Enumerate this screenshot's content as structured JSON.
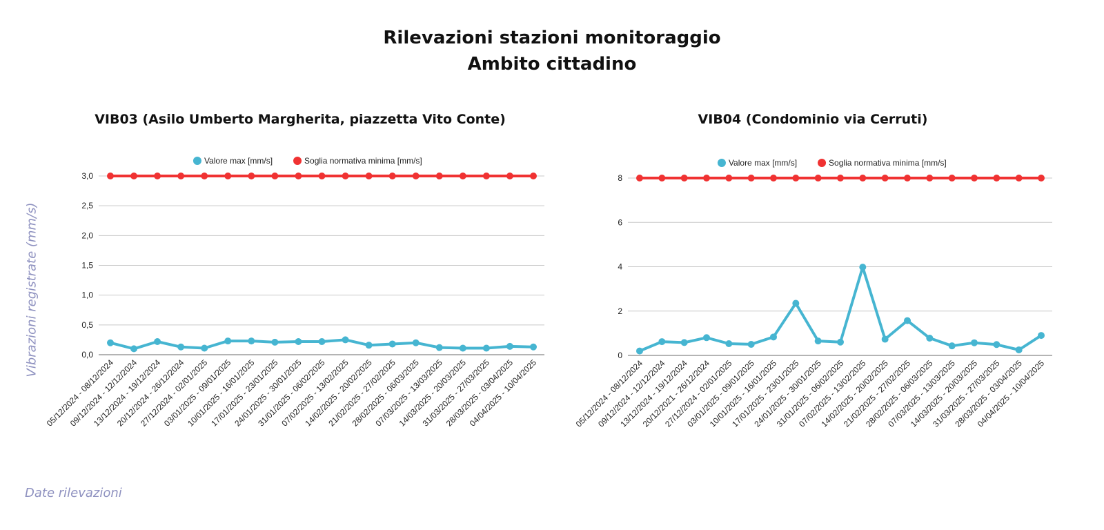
{
  "page": {
    "title_line1": "Rilevazioni stazioni monitoraggio",
    "title_line2": "Ambito cittadino",
    "y_axis_label": "Vibrazioni registrate (mm/s)",
    "x_axis_label": "Date rilevazioni"
  },
  "colors": {
    "valore_max": "#46b5d1",
    "soglia": "#f03232",
    "grid": "#c8c8c8",
    "axis": "#888888"
  },
  "chart_data": [
    {
      "type": "line",
      "title": "VIB03 (Asilo Umberto Margherita, piazzetta Vito Conte)",
      "xlabel": "",
      "ylabel": "",
      "ylim": [
        0,
        3
      ],
      "yticks": [
        "0,0",
        "0,5",
        "1,0",
        "1,5",
        "2,0",
        "2,5",
        "3,0"
      ],
      "ytick_values": [
        0,
        0.5,
        1,
        1.5,
        2,
        2.5,
        3
      ],
      "grid": true,
      "legend": "top-center",
      "categories": [
        "05/12/2024 - 08/12/2024",
        "09/12/2024 - 12/12/2024",
        "13/12/2024 - 19/12/2024",
        "20/12/2024 - 26/12/2024",
        "27/12/2024 - 02/01/2025",
        "03/01/2025 - 09/01/2025",
        "10/01/2025 - 16/01/2025",
        "17/01/2025 - 23/01/2025",
        "24/01/2025 - 30/01/2025",
        "31/01/2025 - 06/02/2025",
        "07/02/2025 - 13/02/2025",
        "14/02/2025 - 20/02/2025",
        "21/02/2025 - 27/02/2025",
        "28/02/2025 - 06/03/2025",
        "07/03/2025 - 13/03/2025",
        "14/03/2025 - 20/03/2025",
        "31/03/2025 - 27/03/2025",
        "28/03/2025 - 03/04/2025",
        "04/04/2025 - 10/04/2025"
      ],
      "series": [
        {
          "name": "Valore max [mm/s]",
          "values": [
            0.2,
            0.1,
            0.22,
            0.13,
            0.11,
            0.23,
            0.23,
            0.21,
            0.22,
            0.22,
            0.25,
            0.16,
            0.18,
            0.2,
            0.12,
            0.11,
            0.11,
            0.14,
            0.13
          ]
        },
        {
          "name": "Soglia normativa minima [mm/s]",
          "values": [
            3,
            3,
            3,
            3,
            3,
            3,
            3,
            3,
            3,
            3,
            3,
            3,
            3,
            3,
            3,
            3,
            3,
            3,
            3
          ]
        }
      ]
    },
    {
      "type": "line",
      "title": "VIB04 (Condominio via Cerruti)",
      "xlabel": "",
      "ylabel": "",
      "ylim": [
        0,
        8
      ],
      "yticks": [
        "0",
        "2",
        "4",
        "6",
        "8"
      ],
      "ytick_values": [
        0,
        2,
        4,
        6,
        8
      ],
      "grid": true,
      "legend": "top-center",
      "categories": [
        "05/12/2024 - 08/12/2024",
        "09/12/2024 - 12/12/2024",
        "13/12/2024 - 19/12/2024",
        "20/12/2021 - 26/12/2024",
        "27/12/2024 - 02/01/2025",
        "03/01/2025 - 09/01/2025",
        "10/01/2025 - 16/01/2025",
        "17/01/2025 - 23/01/2025",
        "24/01/2025 - 30/01/2025",
        "31/01/2025 - 06/02/2025",
        "07/02/2025 - 13/02/2025",
        "14/02/2025 - 20/02/2025",
        "21/02/2025 - 27/02/2025",
        "28/02/2025 - 06/03/2025",
        "07/03/2025 - 13/03/2025",
        "14/03/2025 - 20/03/2025",
        "31/03/2025 - 27/03/2025",
        "28/03/2025 - 03/04/2025",
        "04/04/2025 - 10/04/2025"
      ],
      "series": [
        {
          "name": "Valore max [mm/s]",
          "values": [
            0.2,
            0.62,
            0.58,
            0.8,
            0.53,
            0.5,
            0.83,
            2.35,
            0.65,
            0.6,
            3.98,
            0.73,
            1.57,
            0.78,
            0.43,
            0.57,
            0.49,
            0.25,
            0.9
          ]
        },
        {
          "name": "Soglia normativa minima [mm/s]",
          "values": [
            8,
            8,
            8,
            8,
            8,
            8,
            8,
            8,
            8,
            8,
            8,
            8,
            8,
            8,
            8,
            8,
            8,
            8,
            8
          ]
        }
      ]
    }
  ]
}
